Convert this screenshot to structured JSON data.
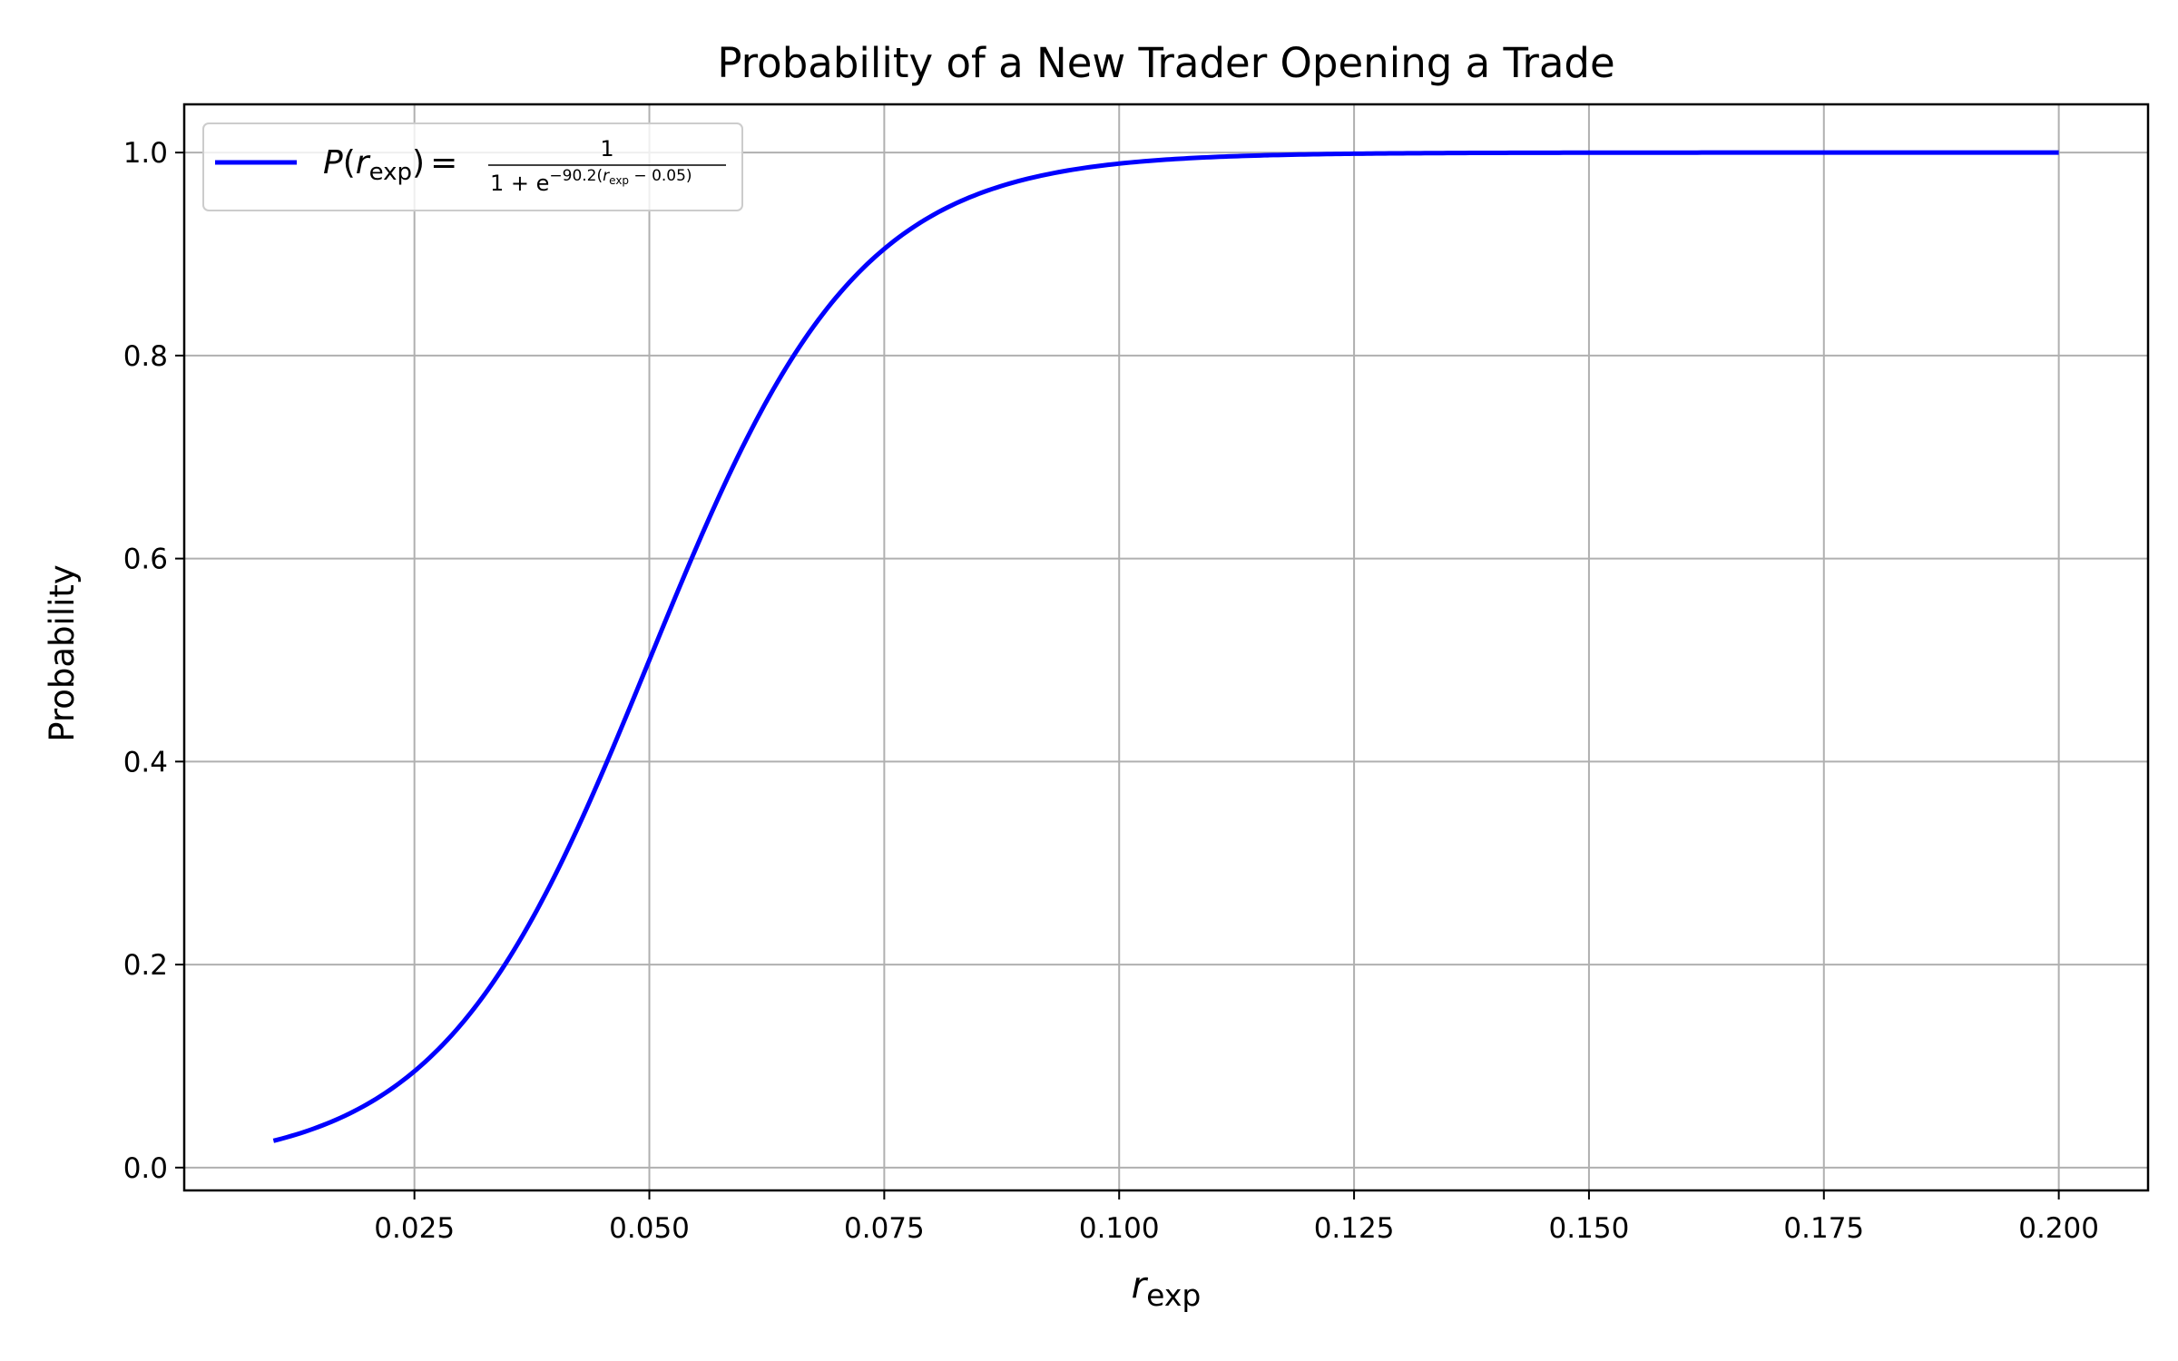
{
  "chart_data": {
    "type": "line",
    "title": "Probability of a New Trader Opening a Trade",
    "xlabel": {
      "main": "r",
      "sub": "exp"
    },
    "ylabel": "Probability",
    "xlim": [
      0.0005,
      0.2095
    ],
    "ylim": [
      -0.0225,
      1.0475
    ],
    "x_ticks": [
      0.025,
      0.05,
      0.075,
      0.1,
      0.125,
      0.15,
      0.175,
      0.2
    ],
    "x_tick_labels": [
      "0.025",
      "0.050",
      "0.075",
      "0.100",
      "0.125",
      "0.150",
      "0.175",
      "0.200"
    ],
    "y_ticks": [
      0.0,
      0.2,
      0.4,
      0.6,
      0.8,
      1.0
    ],
    "y_tick_labels": [
      "0.0",
      "0.2",
      "0.4",
      "0.6",
      "0.8",
      "1.0"
    ],
    "grid": true,
    "legend_position": "top-left",
    "series": [
      {
        "name": "P(r_exp) = 1 / (1 + e^(-90.2(r_exp - 0.05)))",
        "color": "#0000ff",
        "function": "logistic",
        "k": 90.2,
        "x0": 0.05,
        "x_range": [
          0.01,
          0.2
        ],
        "x": [
          0.01,
          0.015,
          0.02,
          0.025,
          0.03,
          0.035,
          0.04,
          0.045,
          0.05,
          0.055,
          0.06,
          0.065,
          0.07,
          0.075,
          0.08,
          0.085,
          0.09,
          0.095,
          0.1,
          0.11,
          0.12,
          0.13,
          0.14,
          0.15,
          0.16,
          0.17,
          0.18,
          0.19,
          0.2
        ],
        "y": [
          0.026,
          0.041,
          0.063,
          0.095,
          0.141,
          0.205,
          0.289,
          0.389,
          0.5,
          0.611,
          0.711,
          0.795,
          0.859,
          0.905,
          0.937,
          0.959,
          0.974,
          0.983,
          0.989,
          0.996,
          0.998,
          0.999,
          1.0,
          1.0,
          1.0,
          1.0,
          1.0,
          1.0,
          1.0
        ]
      }
    ],
    "legend": {
      "lhs_func": "P",
      "lhs_var": "r",
      "lhs_sub": "exp",
      "equals": "=",
      "numerator": "1",
      "den_base": "1 + e",
      "den_exp_prefix": "−90.2(",
      "den_exp_var": "r",
      "den_exp_sub": "exp",
      "den_exp_suffix": " − 0.05)"
    }
  }
}
